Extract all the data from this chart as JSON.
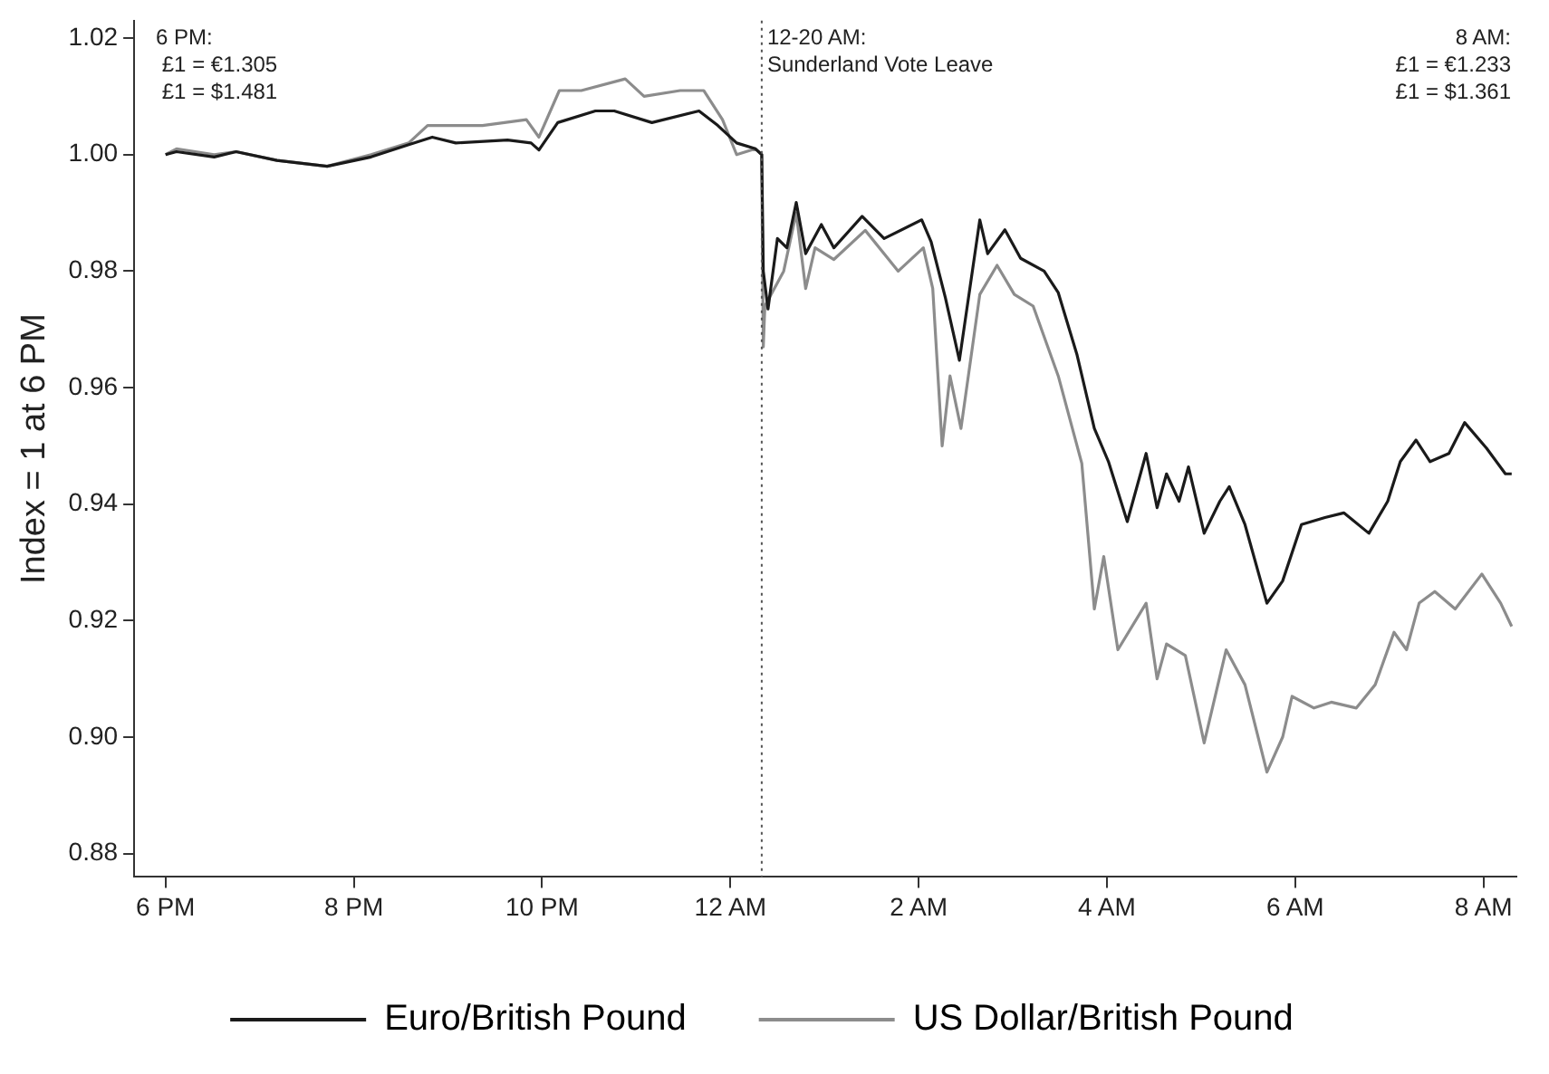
{
  "chart_data": {
    "type": "line",
    "ylabel": "Index = 1 at 6 PM",
    "xlim": [
      "--06-23T17:40",
      "--06-24T08:21"
    ],
    "xticks": [
      {
        "value": "--06-23T18:00",
        "label": "6 PM"
      },
      {
        "value": "--06-23T20:00",
        "label": "8 PM"
      },
      {
        "value": "--06-23T22:00",
        "label": "10 PM"
      },
      {
        "value": "--06-24T00:00",
        "label": "12 AM"
      },
      {
        "value": "--06-24T02:00",
        "label": "2 AM"
      },
      {
        "value": "--06-24T04:00",
        "label": "4 AM"
      },
      {
        "value": "--06-24T06:00",
        "label": "6 AM"
      },
      {
        "value": "--06-24T08:00",
        "label": "8 AM"
      }
    ],
    "ylim": [
      0.876,
      1.023
    ],
    "yticks": [
      0.88,
      {
        "value": 0.9,
        "label": "0.90"
      },
      0.92,
      0.94,
      0.96,
      0.98,
      {
        "value": 1,
        "label": "1.00"
      },
      1.02
    ],
    "grid": false,
    "legend": "bottom",
    "marker": "none",
    "line_style": "solid",
    "annotations": [
      "6 PM:\n £1 = €1.305\n £1 = $1.481",
      "8 AM:\n£1 = €1.233\n£1 = $1.361"
    ],
    "ref_lines": [
      {
        "axis": "x",
        "value": "--06-24T00:20",
        "label": "12-20 AM:\nSunderland Vote Leave",
        "color": "#555555",
        "line_style": "dotted"
      }
    ],
    "series": [
      {
        "name": "Euro/British Pound",
        "color": "#1a1a1a",
        "x": [
          "--06-23T18:00",
          "--06-23T18:07",
          "--06-23T18:31",
          "--06-23T18:45",
          "--06-23T19:11",
          "--06-23T19:43",
          "--06-23T20:11",
          "--06-23T20:35",
          "--06-23T20:50",
          "--06-23T21:05",
          "--06-23T21:38",
          "--06-23T21:53",
          "--06-23T21:58",
          "--06-23T22:10",
          "--06-23T22:34",
          "--06-23T22:46",
          "--06-23T23:10",
          "--06-23T23:40",
          "--06-23T23:52",
          "--06-24T00:04",
          "--06-24T00:16",
          "--06-24T00:20",
          "--06-24T00:21",
          "--06-24T00:24",
          "--06-24T00:30",
          "--06-24T00:36",
          "--06-24T00:42",
          "--06-24T00:48",
          "--06-24T00:58",
          "--06-24T01:06",
          "--06-24T01:24",
          "--06-24T01:38",
          "--06-24T02:02",
          "--06-24T02:08",
          "--06-24T02:17",
          "--06-24T02:26",
          "--06-24T02:39",
          "--06-24T02:44",
          "--06-24T02:55",
          "--06-24T03:05",
          "--06-24T03:20",
          "--06-24T03:29",
          "--06-24T03:41",
          "--06-24T03:52",
          "--06-24T04:01",
          "--06-24T04:13",
          "--06-24T04:25",
          "--06-24T04:32",
          "--06-24T04:38",
          "--06-24T04:46",
          "--06-24T04:52",
          "--06-24T05:02",
          "--06-24T05:12",
          "--06-24T05:18",
          "--06-24T05:28",
          "--06-24T05:42",
          "--06-24T05:52",
          "--06-24T06:04",
          "--06-24T06:19",
          "--06-24T06:31",
          "--06-24T06:47",
          "--06-24T06:59",
          "--06-24T07:07",
          "--06-24T07:17",
          "--06-24T07:26",
          "--06-24T07:38",
          "--06-24T07:48",
          "--06-24T08:02",
          "--06-24T08:14",
          "--06-24T08:18"
        ],
        "values": [
          1.0,
          1.0005,
          0.9996,
          1.0005,
          0.999,
          0.998,
          0.9996,
          1.0017,
          1.003,
          1.002,
          1.0025,
          1.002,
          1.0008,
          1.0055,
          1.0075,
          1.0075,
          1.0055,
          1.0075,
          1.005,
          1.002,
          1.001,
          1.0,
          0.98,
          0.9735,
          0.9856,
          0.984,
          0.9918,
          0.983,
          0.988,
          0.984,
          0.9894,
          0.9856,
          0.9888,
          0.985,
          0.9755,
          0.9647,
          0.9888,
          0.983,
          0.9871,
          0.9822,
          0.98,
          0.9763,
          0.9656,
          0.953,
          0.9473,
          0.937,
          0.9487,
          0.9394,
          0.9452,
          0.9405,
          0.9464,
          0.935,
          0.9405,
          0.943,
          0.9365,
          0.923,
          0.9268,
          0.9365,
          0.9377,
          0.9385,
          0.935,
          0.9405,
          0.9473,
          0.951,
          0.9473,
          0.9487,
          0.954,
          0.9496,
          0.9452,
          0.9452
        ]
      },
      {
        "name": "US Dollar/British Pound",
        "color": "#8c8c8c",
        "x": [
          "--06-23T18:00",
          "--06-23T18:07",
          "--06-23T18:31",
          "--06-23T18:45",
          "--06-23T19:11",
          "--06-23T19:43",
          "--06-23T20:11",
          "--06-23T20:35",
          "--06-23T20:47",
          "--06-23T21:22",
          "--06-23T21:50",
          "--06-23T21:58",
          "--06-23T22:11",
          "--06-23T22:25",
          "--06-23T22:53",
          "--06-23T23:05",
          "--06-23T23:28",
          "--06-23T23:43",
          "--06-23T23:55",
          "--06-24T00:04",
          "--06-24T00:16",
          "--06-24T00:20",
          "--06-24T00:21",
          "--06-24T00:22",
          "--06-24T00:34",
          "--06-24T00:42",
          "--06-24T00:48",
          "--06-24T00:54",
          "--06-24T01:06",
          "--06-24T01:26",
          "--06-24T01:47",
          "--06-24T02:03",
          "--06-24T02:09",
          "--06-24T02:15",
          "--06-24T02:20",
          "--06-24T02:27",
          "--06-24T02:39",
          "--06-24T02:50",
          "--06-24T03:01",
          "--06-24T03:13",
          "--06-24T03:29",
          "--06-24T03:38",
          "--06-24T03:44",
          "--06-24T03:52",
          "--06-24T03:58",
          "--06-24T04:07",
          "--06-24T04:25",
          "--06-24T04:32",
          "--06-24T04:38",
          "--06-24T04:50",
          "--06-24T05:02",
          "--06-24T05:16",
          "--06-24T05:28",
          "--06-24T05:42",
          "--06-24T05:52",
          "--06-24T05:58",
          "--06-24T06:12",
          "--06-24T06:23",
          "--06-24T06:39",
          "--06-24T06:51",
          "--06-24T07:03",
          "--06-24T07:11",
          "--06-24T07:19",
          "--06-24T07:29",
          "--06-24T07:42",
          "--06-24T07:59",
          "--06-24T08:11",
          "--06-24T08:18"
        ],
        "values": [
          1.0,
          1.001,
          1.0,
          1.0005,
          0.999,
          0.998,
          1.0,
          1.002,
          1.005,
          1.005,
          1.006,
          1.003,
          1.011,
          1.011,
          1.013,
          1.01,
          1.011,
          1.011,
          1.006,
          1.0,
          1.001,
          1.0,
          0.967,
          0.974,
          0.98,
          0.99,
          0.977,
          0.984,
          0.982,
          0.987,
          0.98,
          0.984,
          0.977,
          0.95,
          0.962,
          0.953,
          0.976,
          0.981,
          0.976,
          0.974,
          0.962,
          0.953,
          0.947,
          0.922,
          0.931,
          0.915,
          0.923,
          0.91,
          0.916,
          0.914,
          0.899,
          0.915,
          0.909,
          0.894,
          0.9,
          0.907,
          0.905,
          0.906,
          0.905,
          0.909,
          0.918,
          0.915,
          0.923,
          0.925,
          0.922,
          0.928,
          0.923,
          0.919
        ]
      }
    ]
  }
}
